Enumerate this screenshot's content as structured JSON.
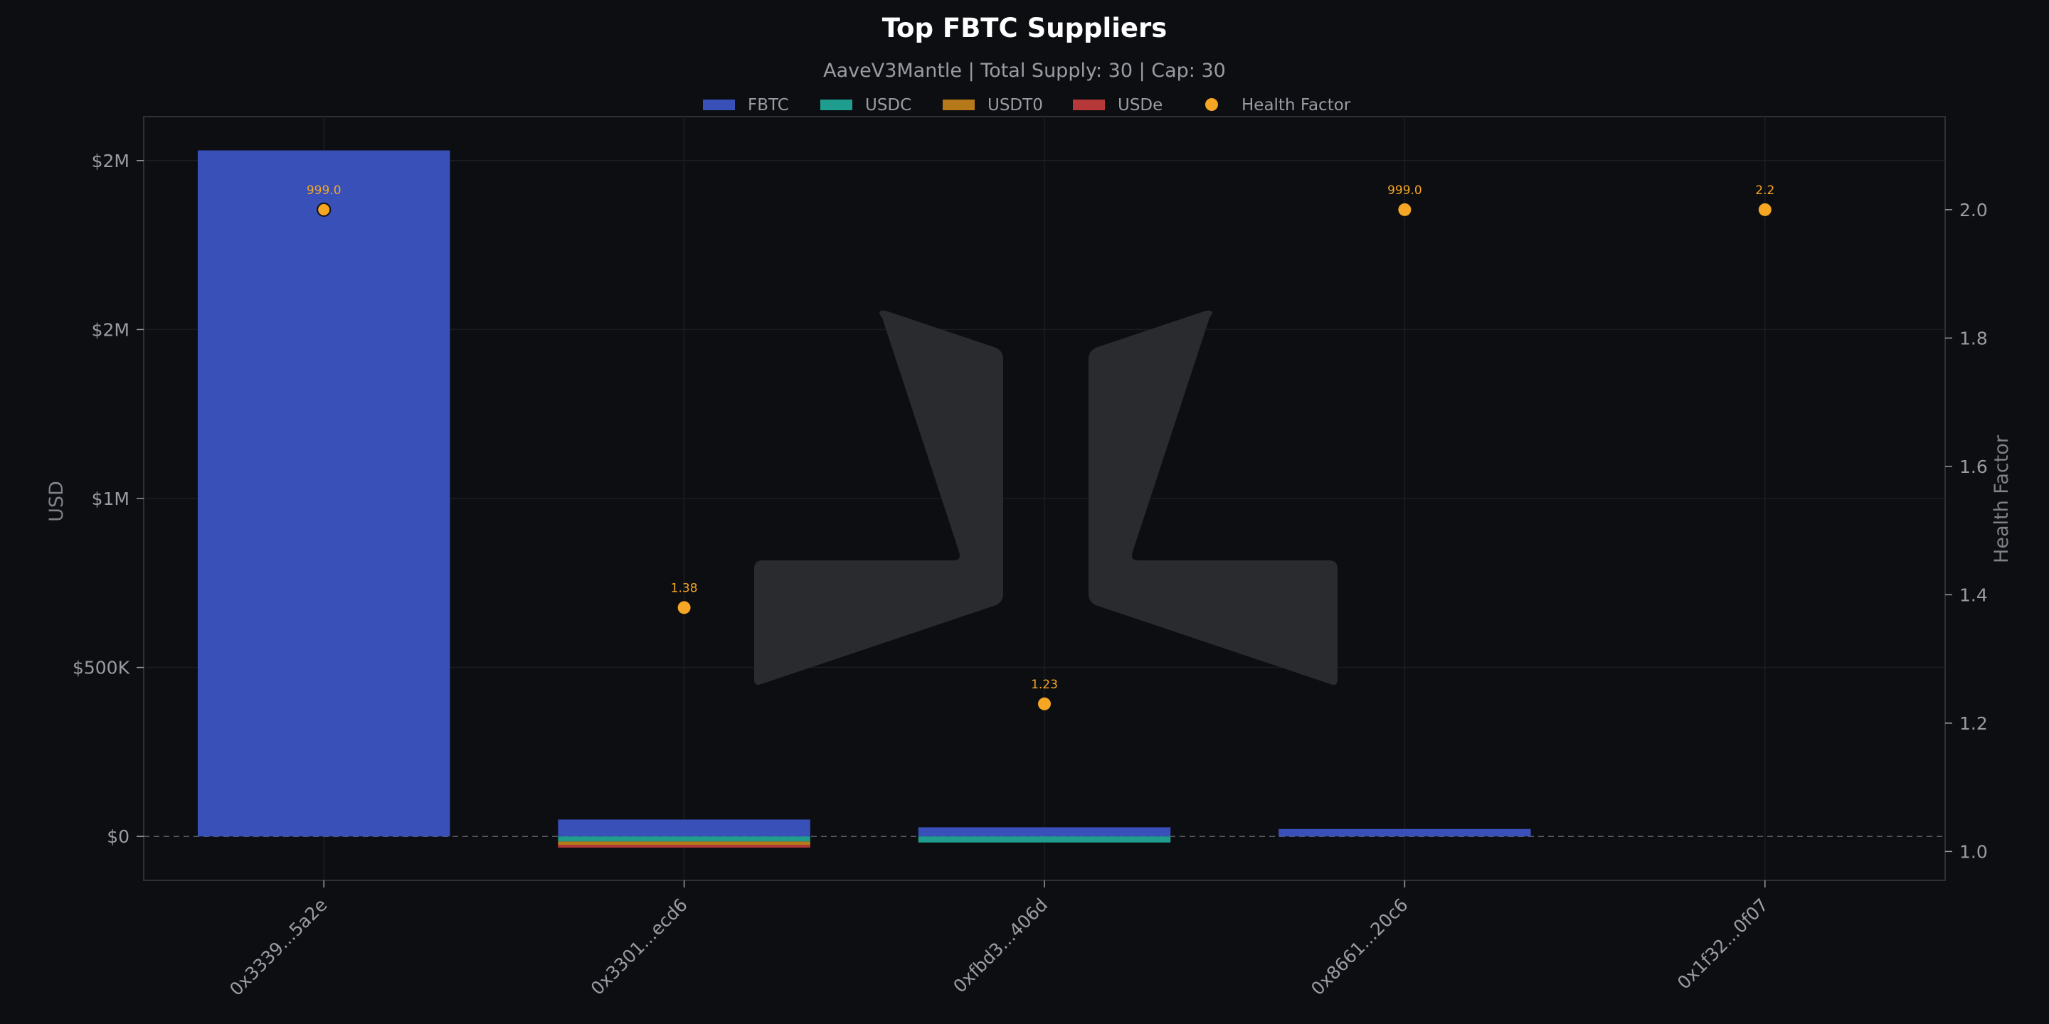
{
  "chart_data": {
    "type": "bar",
    "title": "Top FBTC Suppliers",
    "subtitle": "AaveV3Mantle | Total Supply: 30 | Cap: 30",
    "ylabel": "USD",
    "y2label": "Health Factor",
    "stacked": true,
    "categories": [
      "0x3339...5a2e",
      "0x3301...ecd6",
      "0xfbd3...406d",
      "0x8661...20c6",
      "0x1f32...0f07"
    ],
    "ylim": [
      -130000,
      2130000
    ],
    "y_ticks": [
      {
        "value": 0,
        "label": "$0"
      },
      {
        "value": 500000,
        "label": "$500K"
      },
      {
        "value": 1000000,
        "label": "$1M"
      },
      {
        "value": 1500000,
        "label": "$2M"
      },
      {
        "value": 2000000,
        "label": "$2M"
      }
    ],
    "y2lim": [
      0.955,
      2.145
    ],
    "y2_ticks": [
      1.0,
      1.2,
      1.4,
      1.6,
      1.8,
      2.0
    ],
    "series": [
      {
        "name": "FBTC",
        "color": "#3850b8",
        "values": [
          2030000,
          50000,
          27000,
          22000,
          0
        ]
      },
      {
        "name": "USDC",
        "color": "#1f9e8f",
        "values": [
          0,
          -15000,
          -18000,
          0,
          0
        ]
      },
      {
        "name": "USDT0",
        "color": "#b5791a",
        "values": [
          0,
          -10000,
          0,
          0,
          0
        ]
      },
      {
        "name": "USDe",
        "color": "#b73838",
        "values": [
          0,
          -8000,
          0,
          0,
          0
        ]
      }
    ],
    "health_factor": {
      "name": "Health Factor",
      "color": "#f5a623",
      "labels": [
        "999.0",
        "1.38",
        "1.23",
        "999.0",
        "2.2"
      ],
      "plotted": [
        2.0,
        1.38,
        1.23,
        2.0,
        2.0
      ]
    },
    "grid": true,
    "legend_position": "top-center"
  },
  "watermark": {
    "name": "logo-watermark",
    "color": "#2a2b2f"
  }
}
